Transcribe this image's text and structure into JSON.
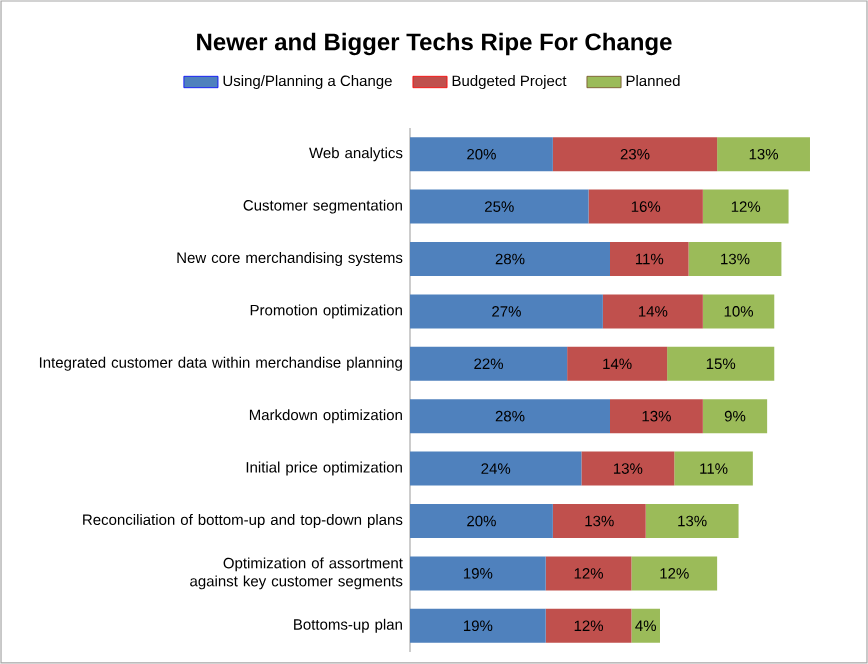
{
  "chart_data": {
    "type": "bar",
    "orientation": "horizontal",
    "stacked": true,
    "title": "Newer and Bigger Techs Ripe For Change",
    "categories": [
      "Web analytics",
      "Customer segmentation",
      "New core merchandising systems",
      "Promotion optimization",
      "Integrated customer data within merchandise planning",
      "Markdown optimization",
      "Initial price optimization",
      "Reconciliation of bottom-up and top-down plans",
      "Optimization of assortment against key customer segments",
      "Bottoms-up plan"
    ],
    "series": [
      {
        "name": "Using/Planning a Change",
        "color": "#4f81bd",
        "values": [
          20,
          25,
          28,
          27,
          22,
          28,
          24,
          20,
          19,
          19
        ],
        "value_labels": [
          "20%",
          "25%",
          "28%",
          "27%",
          "22%",
          "28%",
          "24%",
          "20%",
          "19%",
          "19%"
        ]
      },
      {
        "name": "Budgeted Project",
        "color": "#c0504d",
        "values": [
          23,
          16,
          11,
          14,
          14,
          13,
          13,
          13,
          12,
          12
        ],
        "value_labels": [
          "23%",
          "16%",
          "11%",
          "14%",
          "14%",
          "13%",
          "13%",
          "13%",
          "12%",
          "12%"
        ]
      },
      {
        "name": "Planned",
        "color": "#9bbb59",
        "values": [
          13,
          12,
          13,
          10,
          15,
          9,
          11,
          13,
          12,
          4
        ],
        "value_labels": [
          "13%",
          "12%",
          "13%",
          "10%",
          "15%",
          "9%",
          "11%",
          "13%",
          "12%",
          "4%"
        ]
      }
    ],
    "legend": "top",
    "tick_labels": "y"
  }
}
